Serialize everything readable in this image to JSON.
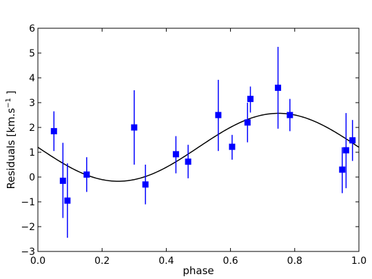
{
  "chart_data": {
    "type": "scatter",
    "xlabel": "phase",
    "ylabel": "Residuals [km.s−1 ]",
    "xlim": [
      0.0,
      1.0
    ],
    "ylim": [
      -3,
      6
    ],
    "xticks": [
      0.0,
      0.2,
      0.4,
      0.6,
      0.8,
      1.0
    ],
    "xtick_labels": [
      "0.0",
      "0.2",
      "0.4",
      "0.6",
      "0.8",
      "1.0"
    ],
    "yticks": [
      -3,
      -2,
      -1,
      0,
      1,
      2,
      3,
      4,
      5,
      6
    ],
    "ytick_labels": [
      "−3",
      "−2",
      "−1",
      "0",
      "1",
      "2",
      "3",
      "4",
      "5",
      "6"
    ],
    "grid": false,
    "points": [
      {
        "x": 0.05,
        "y": 1.85,
        "lo": 1.05,
        "hi": 2.65
      },
      {
        "x": 0.078,
        "y": -0.15,
        "lo": -1.65,
        "hi": 1.38
      },
      {
        "x": 0.092,
        "y": -0.95,
        "lo": -2.45,
        "hi": 0.55
      },
      {
        "x": 0.152,
        "y": 0.1,
        "lo": -0.6,
        "hi": 0.8
      },
      {
        "x": 0.3,
        "y": 2.0,
        "lo": 0.5,
        "hi": 3.5
      },
      {
        "x": 0.335,
        "y": -0.3,
        "lo": -1.1,
        "hi": 0.5
      },
      {
        "x": 0.43,
        "y": 0.92,
        "lo": 0.15,
        "hi": 1.65
      },
      {
        "x": 0.468,
        "y": 0.62,
        "lo": -0.05,
        "hi": 1.3
      },
      {
        "x": 0.562,
        "y": 2.5,
        "lo": 1.05,
        "hi": 3.92
      },
      {
        "x": 0.605,
        "y": 1.22,
        "lo": 0.7,
        "hi": 1.7
      },
      {
        "x": 0.653,
        "y": 2.2,
        "lo": 1.4,
        "hi": 3.0
      },
      {
        "x": 0.662,
        "y": 3.15,
        "lo": 2.6,
        "hi": 3.65
      },
      {
        "x": 0.748,
        "y": 3.6,
        "lo": 1.95,
        "hi": 5.25
      },
      {
        "x": 0.785,
        "y": 2.5,
        "lo": 1.85,
        "hi": 3.15
      },
      {
        "x": 0.948,
        "y": 0.3,
        "lo": -0.65,
        "hi": 1.2
      },
      {
        "x": 0.96,
        "y": 1.08,
        "lo": -0.45,
        "hi": 2.58
      },
      {
        "x": 0.98,
        "y": 1.48,
        "lo": 0.65,
        "hi": 2.3
      }
    ],
    "model_curve": {
      "offset": 1.2,
      "amplitude": 1.37,
      "phase_of_max": 0.75
    },
    "colors": {
      "points": "#0000ff",
      "curve": "#000000",
      "axes": "#000000"
    }
  }
}
